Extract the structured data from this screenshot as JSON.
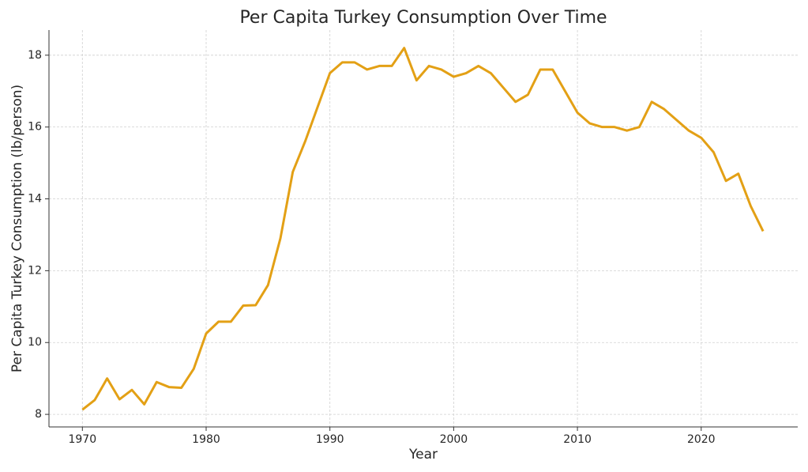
{
  "chart_data": {
    "type": "line",
    "title": "Per Capita Turkey Consumption Over Time",
    "xlabel": "Year",
    "ylabel": "Per Capita Turkey Consumption (lb/person)",
    "x": [
      1970,
      1971,
      1972,
      1973,
      1974,
      1975,
      1976,
      1977,
      1978,
      1979,
      1980,
      1981,
      1982,
      1983,
      1984,
      1985,
      1986,
      1987,
      1988,
      1989,
      1990,
      1991,
      1992,
      1993,
      1994,
      1995,
      1996,
      1997,
      1998,
      1999,
      2000,
      2001,
      2002,
      2003,
      2004,
      2005,
      2006,
      2007,
      2008,
      2009,
      2010,
      2011,
      2012,
      2013,
      2014,
      2015,
      2016,
      2017,
      2018,
      2019,
      2020,
      2021,
      2022,
      2023,
      2024,
      2025
    ],
    "series": [
      {
        "name": "Per Capita Turkey Consumption",
        "color": "#e3a015",
        "values": [
          8.13,
          8.4,
          9.0,
          8.42,
          8.68,
          8.28,
          8.9,
          8.76,
          8.74,
          9.27,
          10.25,
          10.58,
          10.58,
          11.03,
          11.04,
          11.6,
          12.9,
          14.75,
          15.6,
          16.55,
          17.5,
          17.8,
          17.8,
          17.6,
          17.7,
          17.7,
          18.2,
          17.3,
          17.7,
          17.6,
          17.4,
          17.5,
          17.7,
          17.5,
          17.1,
          16.7,
          16.9,
          17.6,
          17.6,
          17.0,
          16.4,
          16.1,
          16.0,
          16.0,
          15.9,
          16.0,
          16.7,
          16.5,
          16.2,
          15.9,
          15.7,
          15.3,
          14.5,
          14.7,
          13.8,
          13.1
        ]
      }
    ],
    "xlim": [
      1967.3,
      2027.8
    ],
    "ylim": [
      7.65,
      18.7
    ],
    "xticks": [
      1970,
      1980,
      1990,
      2000,
      2010,
      2020
    ],
    "yticks": [
      8,
      10,
      12,
      14,
      16,
      18
    ],
    "grid": true
  }
}
